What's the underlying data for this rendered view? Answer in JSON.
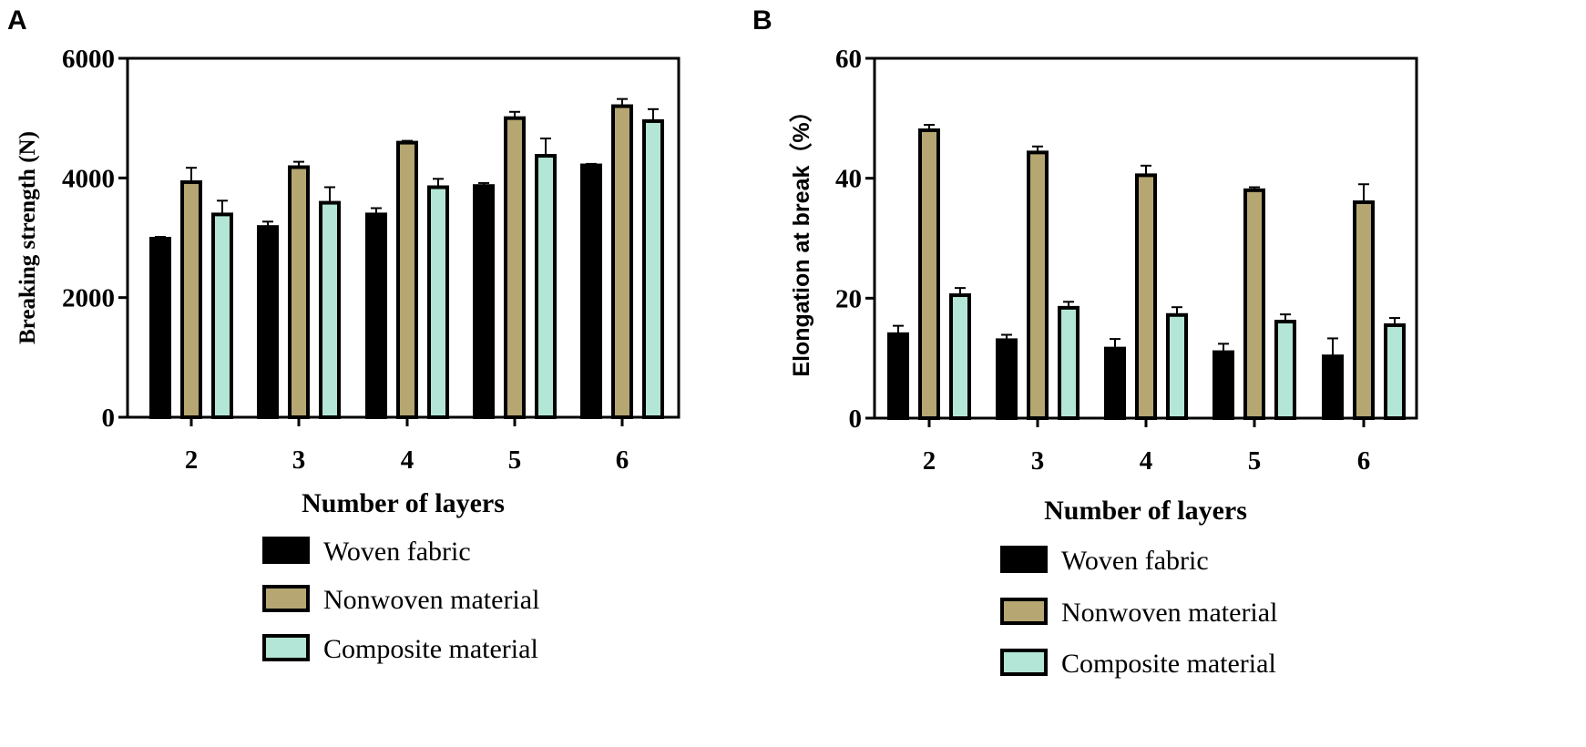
{
  "chart_data": [
    {
      "panel_label": "A",
      "type": "bar",
      "xlabel": "Number of layers",
      "ylabel": "Breaking strength (N)",
      "categories": [
        "2",
        "3",
        "4",
        "5",
        "6"
      ],
      "ylim": [
        0,
        6000
      ],
      "yticks": [
        "0",
        "2000",
        "4000",
        "6000"
      ],
      "grid": false,
      "legend_position": "bottom",
      "series": [
        {
          "name": "Woven fabric",
          "color": "#000000",
          "values": [
            2985,
            3180,
            3390,
            3865,
            4210
          ],
          "error": [
            30,
            90,
            105,
            50,
            25
          ]
        },
        {
          "name": "Nonwoven material",
          "color": "#b5a672",
          "values": [
            3930,
            4180,
            4590,
            5000,
            5200
          ],
          "error": [
            240,
            90,
            30,
            105,
            120
          ]
        },
        {
          "name": "Composite material",
          "color": "#b3e6d6",
          "values": [
            3390,
            3585,
            3845,
            4370,
            4950
          ],
          "error": [
            230,
            260,
            140,
            290,
            200
          ]
        }
      ]
    },
    {
      "panel_label": "B",
      "type": "bar",
      "xlabel": "Number of layers",
      "ylabel": "Elongation at break（%）",
      "categories": [
        "2",
        "3",
        "4",
        "5",
        "6"
      ],
      "ylim": [
        0,
        60
      ],
      "yticks": [
        "0",
        "20",
        "40",
        "60"
      ],
      "grid": false,
      "legend_position": "bottom",
      "series": [
        {
          "name": "Woven fabric",
          "color": "#000000",
          "values": [
            14.0,
            13.0,
            11.6,
            11.0,
            10.3
          ],
          "error": [
            1.4,
            0.9,
            1.6,
            1.4,
            3.0
          ]
        },
        {
          "name": "Nonwoven material",
          "color": "#b5a672",
          "values": [
            48.0,
            44.3,
            40.5,
            38.0,
            36.0
          ],
          "error": [
            0.9,
            1.0,
            1.6,
            0.5,
            3.0
          ]
        },
        {
          "name": "Composite material",
          "color": "#b3e6d6",
          "values": [
            20.5,
            18.4,
            17.2,
            16.1,
            15.5
          ],
          "error": [
            1.2,
            1.0,
            1.3,
            1.2,
            1.2
          ]
        }
      ]
    }
  ]
}
